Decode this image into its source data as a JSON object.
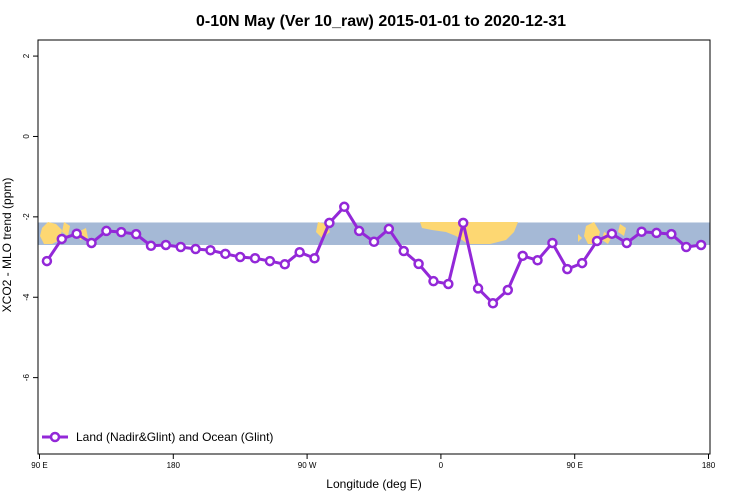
{
  "chart_data": {
    "type": "line",
    "title": "0-10N May (Ver 10_raw)   2015-01-01 to 2020-12-31",
    "xlabel": "Longitude (deg E)",
    "ylabel": "XCO2 - MLO trend (ppm)",
    "x_axis": {
      "range": [
        90,
        450
      ],
      "ticks": [
        {
          "value": 90,
          "label": "90 E"
        },
        {
          "value": 180,
          "label": "180"
        },
        {
          "value": 270,
          "label": "90 W"
        },
        {
          "value": 360,
          "label": "0"
        },
        {
          "value": 450,
          "label": "90 E"
        },
        {
          "value": 540,
          "label": "180"
        }
      ]
    },
    "y_axis": {
      "range": [
        -7.9,
        2.4
      ],
      "ticks": [
        {
          "value": 2,
          "label": "2"
        },
        {
          "value": 0,
          "label": "0"
        },
        {
          "value": -2,
          "label": "-2"
        },
        {
          "value": -4,
          "label": "-4"
        },
        {
          "value": -6,
          "label": "-6"
        }
      ]
    },
    "x_domain": [
      89,
      541
    ],
    "background_band": {
      "y_range": [
        -2.14,
        -2.7
      ],
      "ocean_color": "#a5b9d6",
      "land_color": "#fdd772"
    },
    "series": [
      {
        "name": "Land (Nadir&Glint) and Ocean (Glint)",
        "color": "#9328d8",
        "x": [
          95,
          105,
          115,
          125,
          135,
          145,
          155,
          165,
          175,
          185,
          195,
          205,
          215,
          225,
          235,
          245,
          255,
          265,
          275,
          285,
          295,
          305,
          315,
          325,
          335,
          345,
          355,
          365,
          375,
          385,
          395,
          405,
          415,
          425,
          435,
          445,
          455,
          465,
          475,
          485,
          495,
          505,
          515,
          525,
          535
        ],
        "y": [
          -3.1,
          -2.55,
          -2.42,
          -2.65,
          -2.35,
          -2.38,
          -2.43,
          -2.72,
          -2.7,
          -2.75,
          -2.8,
          -2.83,
          -2.92,
          -3.0,
          -3.03,
          -3.1,
          -3.18,
          -2.88,
          -3.03,
          -2.15,
          -1.75,
          -2.35,
          -2.62,
          -2.3,
          -2.85,
          -3.17,
          -3.6,
          -3.67,
          -2.15,
          -3.78,
          -4.15,
          -3.82,
          -2.97,
          -3.08,
          -2.65,
          -3.3,
          -3.15,
          -2.6,
          -2.42,
          -2.65,
          -2.37,
          -2.4,
          -2.43,
          -2.75,
          -2.7
        ]
      }
    ],
    "legend": {
      "placement": "bottom-left",
      "label": "Land (Nadir&Glint) and Ocean (Glint)"
    },
    "grid": false
  }
}
